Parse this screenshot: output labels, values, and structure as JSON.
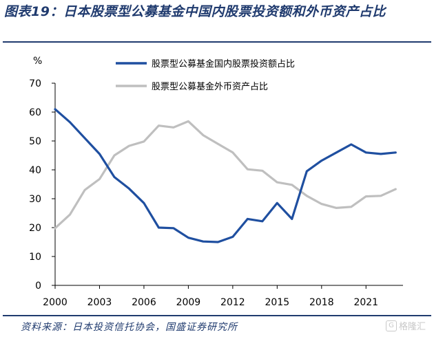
{
  "header": {
    "title": "图表19：日本股票型公募基金中国内股票投资额和外币资产占比"
  },
  "footer": {
    "source": "资料来源：日本投资信托协会，国盛证券研究所",
    "watermark": "格隆汇"
  },
  "colors": {
    "accent": "#1f3a6e",
    "series_domestic": "#1f4fa0",
    "series_foreign": "#bfbfbf"
  },
  "chart_data": {
    "type": "line",
    "y_unit": "%",
    "ylim": [
      0,
      70
    ],
    "y_ticks": [
      0,
      10,
      20,
      30,
      40,
      50,
      60,
      70
    ],
    "xlim": [
      2000,
      2023.5
    ],
    "x_ticks": [
      2000,
      2003,
      2006,
      2009,
      2012,
      2015,
      2018,
      2021
    ],
    "x_tick_labels": [
      "2000",
      "2003",
      "2006",
      "2009",
      "2012",
      "2015",
      "2018",
      "2021"
    ],
    "grid": false,
    "legend_position": "top-right",
    "x": [
      2000,
      2001,
      2002,
      2003,
      2004,
      2005,
      2006,
      2007,
      2008,
      2009,
      2010,
      2011,
      2012,
      2013,
      2014,
      2015,
      2016,
      2017,
      2018,
      2019,
      2020,
      2021,
      2022,
      2023
    ],
    "series": [
      {
        "name": "股票型公募基金国内股票投资额占比",
        "color": "#1f4fa0",
        "values": [
          61,
          56.5,
          51,
          45.5,
          37.5,
          33.5,
          28.5,
          20,
          19.8,
          16.5,
          15.2,
          15,
          16.8,
          23,
          22.2,
          28.5,
          23,
          39.5,
          43.2,
          46,
          48.8,
          46,
          45.5,
          46
        ]
      },
      {
        "name": "股票型公募基金外币资产占比",
        "color": "#bfbfbf",
        "values": [
          19.8,
          24.5,
          33,
          36.8,
          45,
          48.3,
          49.8,
          55.3,
          54.7,
          56.8,
          52,
          49,
          46,
          40.2,
          39.7,
          35.7,
          34.8,
          31,
          28.2,
          26.8,
          27.2,
          30.8,
          31,
          33.3
        ]
      }
    ]
  }
}
